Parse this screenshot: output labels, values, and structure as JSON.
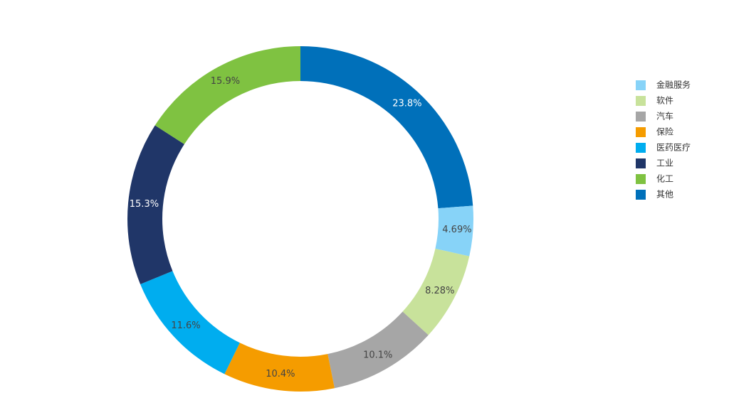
{
  "chart_data": {
    "type": "donut",
    "categories": [
      "金融服务",
      "软件",
      "汽车",
      "保险",
      "医药医疗",
      "工业",
      "化工",
      "其他"
    ],
    "values": [
      4.69,
      8.28,
      10.1,
      10.4,
      11.6,
      15.3,
      15.9,
      23.8
    ],
    "value_labels": [
      "4.69%",
      "8.28%",
      "10.1%",
      "10.4%",
      "11.6%",
      "15.3%",
      "15.9%",
      "23.8%"
    ],
    "colors": [
      "#87d3f8",
      "#c8e29b",
      "#a6a6a6",
      "#f59c00",
      "#00adef",
      "#203668",
      "#7fc241",
      "#0070ba"
    ],
    "legend": "right"
  }
}
